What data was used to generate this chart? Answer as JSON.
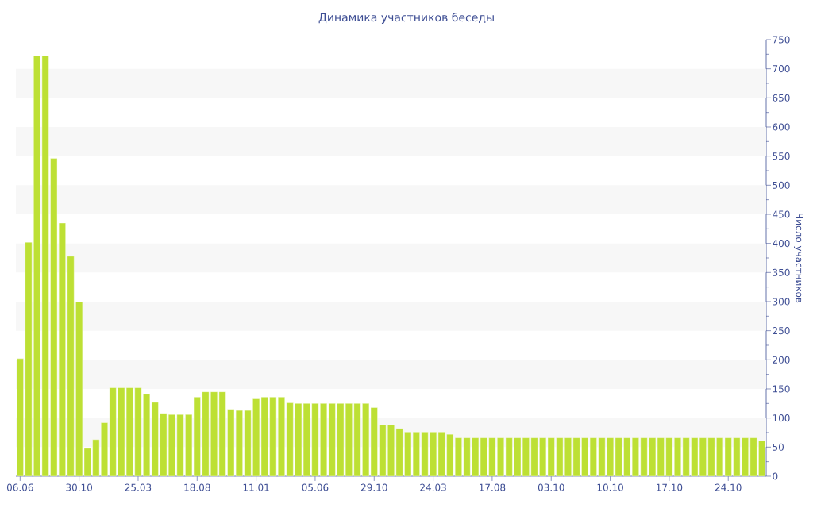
{
  "chart_data": {
    "type": "bar",
    "title": "Динамика участников беседы",
    "ylabel": "Число участников",
    "categories": [
      "06.06",
      null,
      null,
      null,
      null,
      null,
      null,
      "30.10",
      null,
      null,
      null,
      null,
      null,
      null,
      "25.03",
      null,
      null,
      null,
      null,
      null,
      null,
      "18.08",
      null,
      null,
      null,
      null,
      null,
      null,
      "11.01",
      null,
      null,
      null,
      null,
      null,
      null,
      "05.06",
      null,
      null,
      null,
      null,
      null,
      null,
      "29.10",
      null,
      null,
      null,
      null,
      null,
      null,
      "24.03",
      null,
      null,
      null,
      null,
      null,
      null,
      "17.08",
      null,
      null,
      null,
      null,
      null,
      null,
      "03.10",
      null,
      null,
      null,
      null,
      null,
      null,
      "10.10",
      null,
      null,
      null,
      null,
      null,
      null,
      "17.10",
      null,
      null,
      null,
      null,
      null,
      null,
      "24.10",
      null,
      null,
      null,
      null
    ],
    "values": [
      202,
      402,
      722,
      722,
      546,
      435,
      378,
      300,
      48,
      63,
      92,
      152,
      152,
      152,
      152,
      141,
      127,
      108,
      106,
      106,
      106,
      136,
      145,
      145,
      145,
      115,
      113,
      113,
      133,
      136,
      136,
      136,
      126,
      125,
      125,
      125,
      125,
      125,
      125,
      125,
      125,
      125,
      118,
      88,
      88,
      82,
      76,
      76,
      76,
      76,
      76,
      72,
      66,
      66,
      66,
      66,
      66,
      66,
      66,
      66,
      66,
      66,
      66,
      66,
      66,
      66,
      66,
      66,
      66,
      66,
      66,
      66,
      66,
      66,
      66,
      66,
      66,
      66,
      66,
      66,
      66,
      66,
      66,
      66,
      66,
      66,
      66,
      66,
      61
    ],
    "color": "#bde034",
    "ylim": [
      0,
      750
    ],
    "yticks": [
      0,
      50,
      100,
      150,
      200,
      250,
      300,
      350,
      400,
      450,
      500,
      550,
      600,
      650,
      700,
      750
    ],
    "bands": [
      {
        "axis": "y",
        "from": 50,
        "to": 100,
        "color": "#f7f7f7"
      },
      {
        "axis": "y",
        "from": 150,
        "to": 200,
        "color": "#f7f7f7"
      },
      {
        "axis": "y",
        "from": 250,
        "to": 300,
        "color": "#f7f7f7"
      },
      {
        "axis": "y",
        "from": 350,
        "to": 400,
        "color": "#f7f7f7"
      },
      {
        "axis": "y",
        "from": 450,
        "to": 500,
        "color": "#f7f7f7"
      },
      {
        "axis": "y",
        "from": 550,
        "to": 600,
        "color": "#f7f7f7"
      },
      {
        "axis": "y",
        "from": 650,
        "to": 700,
        "color": "#f7f7f7"
      }
    ]
  }
}
